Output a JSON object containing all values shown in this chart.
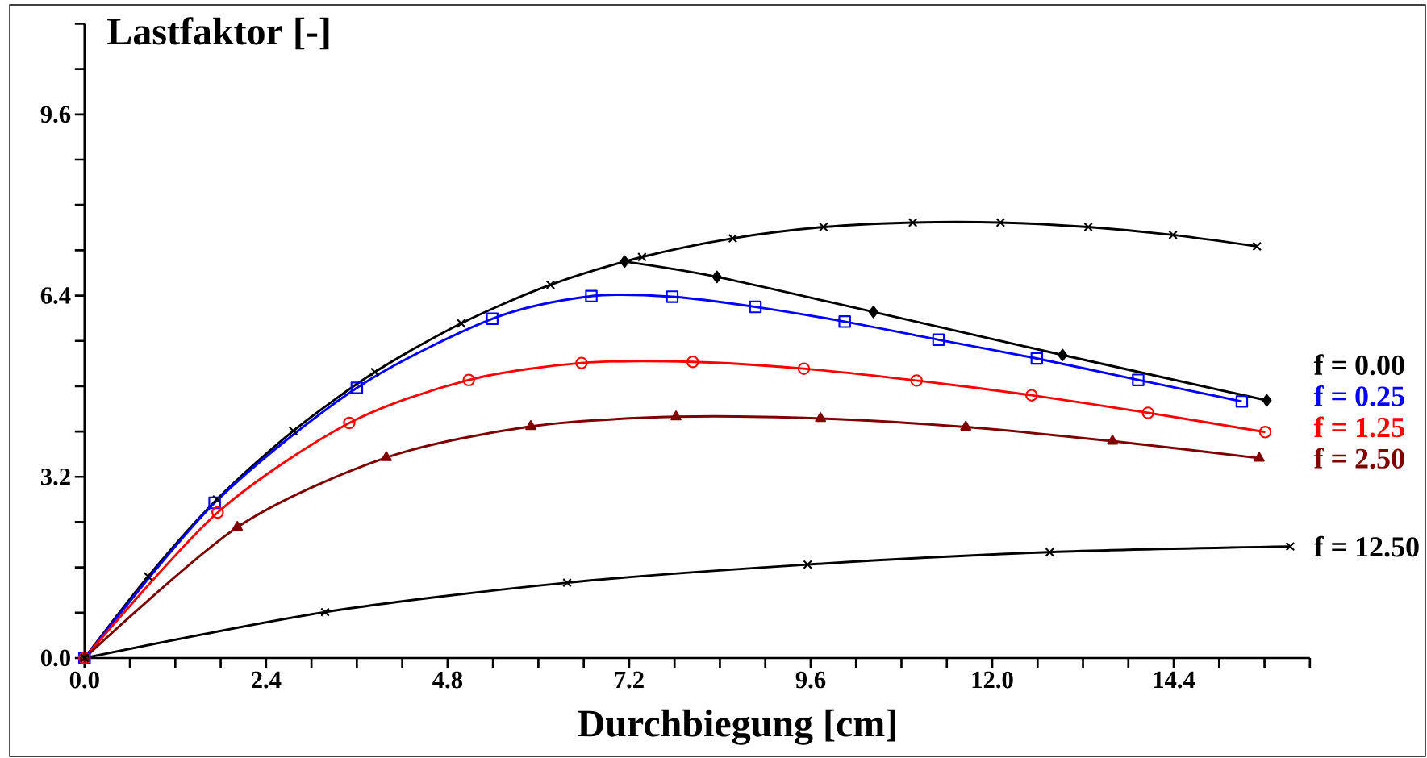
{
  "chart_data": {
    "type": "line",
    "xlabel": "Durchbiegung [cm]",
    "ylabel": "Lastfaktor [-]",
    "xlim": [
      0,
      16.2
    ],
    "ylim": [
      0,
      11.2
    ],
    "xticks": [
      {
        "value": 0,
        "label": "0.0"
      },
      {
        "value": 0.6,
        "label": null
      },
      {
        "value": 1.2,
        "label": null
      },
      {
        "value": 1.8,
        "label": null
      },
      {
        "value": 2.4,
        "label": "2.4"
      },
      {
        "value": 3.0,
        "label": null
      },
      {
        "value": 3.6,
        "label": null
      },
      {
        "value": 4.2,
        "label": null
      },
      {
        "value": 4.8,
        "label": "4.8"
      },
      {
        "value": 5.4,
        "label": null
      },
      {
        "value": 6.0,
        "label": null
      },
      {
        "value": 6.6,
        "label": null
      },
      {
        "value": 7.2,
        "label": "7.2"
      },
      {
        "value": 7.8,
        "label": null
      },
      {
        "value": 8.4,
        "label": null
      },
      {
        "value": 9.0,
        "label": null
      },
      {
        "value": 9.6,
        "label": "9.6"
      },
      {
        "value": 10.2,
        "label": null
      },
      {
        "value": 10.8,
        "label": null
      },
      {
        "value": 11.4,
        "label": null
      },
      {
        "value": 12.0,
        "label": "12.0"
      },
      {
        "value": 12.6,
        "label": null
      },
      {
        "value": 13.2,
        "label": null
      },
      {
        "value": 13.8,
        "label": null
      },
      {
        "value": 14.4,
        "label": "14.4"
      },
      {
        "value": 15.0,
        "label": null
      },
      {
        "value": 15.6,
        "label": null
      },
      {
        "value": 16.2,
        "label": null
      }
    ],
    "yticks": [
      {
        "value": 0,
        "label": "0.0"
      },
      {
        "value": 0.8,
        "label": null
      },
      {
        "value": 1.6,
        "label": null
      },
      {
        "value": 2.4,
        "label": null
      },
      {
        "value": 3.2,
        "label": "3.2"
      },
      {
        "value": 4.0,
        "label": null
      },
      {
        "value": 4.8,
        "label": null
      },
      {
        "value": 5.6,
        "label": null
      },
      {
        "value": 6.4,
        "label": "6.4"
      },
      {
        "value": 7.2,
        "label": null
      },
      {
        "value": 8.0,
        "label": null
      },
      {
        "value": 8.8,
        "label": null
      },
      {
        "value": 9.6,
        "label": "9.6"
      },
      {
        "value": 10.4,
        "label": null
      },
      {
        "value": 11.2,
        "label": null
      }
    ],
    "series": [
      {
        "color": "#000000",
        "marker": "cross",
        "x": [
          0,
          0.84,
          1.75,
          2.76,
          3.84,
          4.98,
          6.16,
          7.37,
          8.57,
          9.77,
          10.95,
          12.11,
          13.27,
          14.39,
          15.5
        ],
        "values": [
          0,
          1.44,
          2.8,
          4.01,
          5.05,
          5.91,
          6.59,
          7.08,
          7.41,
          7.61,
          7.69,
          7.69,
          7.61,
          7.47,
          7.27
        ]
      },
      {
        "name": "f = 0.00",
        "color": "#000000",
        "marker": "diamond",
        "x": [
          7.14,
          8.36,
          10.43,
          12.93,
          15.63
        ],
        "values": [
          7.0,
          6.73,
          6.11,
          5.35,
          4.55
        ]
      },
      {
        "name": "f = 0.25",
        "color": "#0000ff",
        "marker": "square",
        "x": [
          0,
          1.72,
          3.6,
          5.39,
          6.7,
          7.77,
          8.87,
          10.05,
          11.29,
          12.59,
          13.93,
          15.3
        ],
        "values": [
          0,
          2.74,
          4.77,
          5.99,
          6.39,
          6.38,
          6.2,
          5.94,
          5.62,
          5.29,
          4.91,
          4.53
        ]
      },
      {
        "name": "f = 1.25",
        "color": "#ff0000",
        "marker": "circle",
        "x": [
          0,
          1.76,
          3.5,
          5.08,
          6.57,
          8.04,
          9.51,
          11.0,
          12.52,
          14.06,
          15.61
        ],
        "values": [
          0,
          2.57,
          4.15,
          4.91,
          5.21,
          5.23,
          5.11,
          4.9,
          4.64,
          4.33,
          3.99
        ]
      },
      {
        "name": "f = 2.50",
        "color": "#800000",
        "marker": "triangle",
        "x": [
          0,
          2.02,
          3.99,
          5.9,
          7.82,
          9.73,
          11.65,
          13.59,
          15.53
        ],
        "values": [
          0,
          2.31,
          3.54,
          4.09,
          4.26,
          4.23,
          4.08,
          3.83,
          3.53
        ]
      },
      {
        "name": "f = 12.50",
        "color": "#000000",
        "marker": "cross",
        "x": [
          0,
          3.18,
          6.38,
          9.56,
          12.76,
          15.94
        ],
        "values": [
          0,
          0.81,
          1.33,
          1.65,
          1.87,
          1.97
        ]
      }
    ]
  }
}
